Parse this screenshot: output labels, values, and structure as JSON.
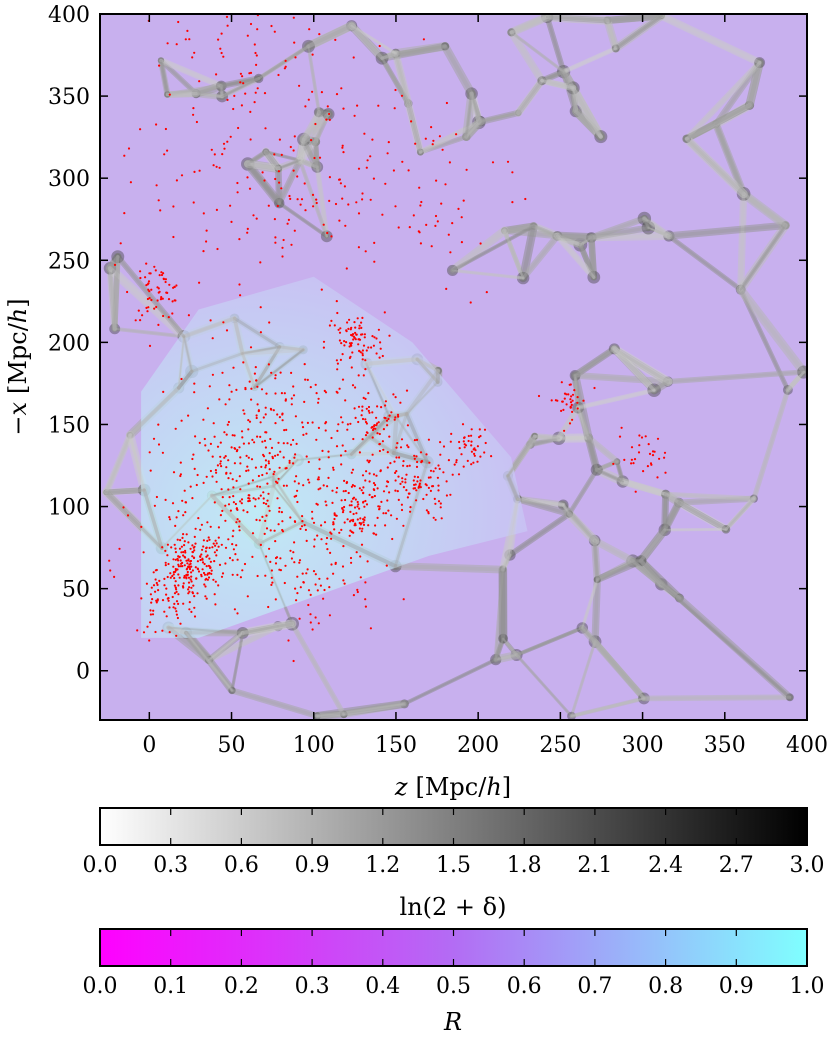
{
  "chart_data": {
    "type": "heatmap",
    "title": "",
    "xlabel_var": "z",
    "xlabel_unit": "[Mpc/",
    "xlabel_unit_var": "h",
    "xlabel_close": "]",
    "ylabel_var": "−x",
    "ylabel_unit": "[Mpc/",
    "ylabel_unit_var": "h",
    "ylabel_close": "]",
    "xlim": [
      -30,
      400
    ],
    "ylim": [
      -30,
      400
    ],
    "xticks": [
      0,
      50,
      100,
      150,
      200,
      250,
      300,
      350,
      400
    ],
    "yticks": [
      0,
      50,
      100,
      150,
      200,
      250,
      300,
      350,
      400
    ],
    "background_field": "ln(2+δ) density in grey, overlaid with R colour (magenta→cyan)",
    "survey_region_polygon": [
      [
        -5,
        20
      ],
      [
        -5,
        170
      ],
      [
        30,
        220
      ],
      [
        100,
        240
      ],
      [
        160,
        200
      ],
      [
        220,
        130
      ],
      [
        230,
        85
      ],
      [
        170,
        70
      ],
      [
        30,
        20
      ]
    ],
    "galaxy_point_color": "#ff0000",
    "galaxy_clusters": [
      {
        "x": 25,
        "y": 62,
        "spread": 10,
        "n": 180
      },
      {
        "x": 5,
        "y": 230,
        "spread": 8,
        "n": 60
      },
      {
        "x": 125,
        "y": 200,
        "spread": 9,
        "n": 80
      },
      {
        "x": 125,
        "y": 100,
        "spread": 12,
        "n": 120
      },
      {
        "x": 160,
        "y": 115,
        "spread": 12,
        "n": 110
      },
      {
        "x": 140,
        "y": 150,
        "spread": 10,
        "n": 70
      },
      {
        "x": 195,
        "y": 137,
        "spread": 6,
        "n": 40
      },
      {
        "x": 255,
        "y": 165,
        "spread": 6,
        "n": 35
      },
      {
        "x": 300,
        "y": 130,
        "spread": 8,
        "n": 30
      },
      {
        "x": 80,
        "y": 140,
        "spread": 30,
        "n": 250
      },
      {
        "x": 50,
        "y": 100,
        "spread": 28,
        "n": 220
      },
      {
        "x": 60,
        "y": 300,
        "spread": 40,
        "n": 140
      },
      {
        "x": 150,
        "y": 300,
        "spread": 40,
        "n": 90
      },
      {
        "x": 60,
        "y": 380,
        "spread": 30,
        "n": 60
      },
      {
        "x": 10,
        "y": 40,
        "spread": 10,
        "n": 50
      },
      {
        "x": 100,
        "y": 60,
        "spread": 20,
        "n": 80
      }
    ],
    "colorbars": [
      {
        "name": "density",
        "label": "ln(2 + δ)",
        "range": [
          0,
          3
        ],
        "ticks": [
          "0.0",
          "0.3",
          "0.6",
          "0.9",
          "1.2",
          "1.5",
          "1.8",
          "2.1",
          "2.4",
          "2.7",
          "3.0"
        ],
        "colors": [
          "#ffffff",
          "#000000"
        ]
      },
      {
        "name": "R",
        "label": "R",
        "range": [
          0,
          1
        ],
        "ticks": [
          "0.0",
          "0.1",
          "0.2",
          "0.3",
          "0.4",
          "0.5",
          "0.6",
          "0.7",
          "0.8",
          "0.9",
          "1.0"
        ],
        "colors": [
          "#ff00ff",
          "#7fffff"
        ]
      }
    ]
  }
}
